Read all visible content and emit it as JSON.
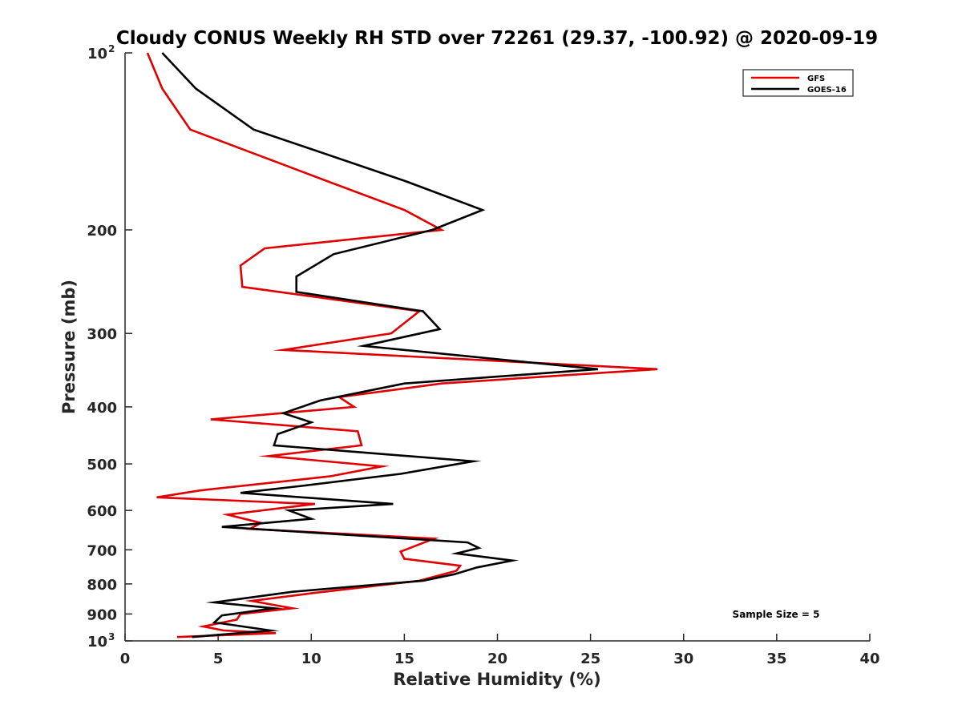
{
  "chart_data": {
    "type": "line",
    "title": "Cloudy CONUS Weekly RH STD over 72261 (29.37, -100.92) @ 2020-09-19",
    "xlabel": "Relative Humidity (%)",
    "ylabel": "Pressure (mb)",
    "xlim": [
      0,
      40
    ],
    "ylim": [
      100,
      1000
    ],
    "y_scale": "log",
    "y_reversed": true,
    "grid": false,
    "legend_position": "top-right",
    "x_ticks": [
      "0",
      "5",
      "10",
      "15",
      "20",
      "25",
      "30",
      "35",
      "40"
    ],
    "y_ticks": [
      {
        "value": 100,
        "base": "10",
        "exp": "2"
      },
      {
        "value": 200,
        "label": "200"
      },
      {
        "value": 300,
        "label": "300"
      },
      {
        "value": 400,
        "label": "400"
      },
      {
        "value": 500,
        "label": "500"
      },
      {
        "value": 600,
        "label": "600"
      },
      {
        "value": 700,
        "label": "700"
      },
      {
        "value": 800,
        "label": "800"
      },
      {
        "value": 900,
        "label": "900"
      },
      {
        "value": 1000,
        "base": "10",
        "exp": "3"
      }
    ],
    "annotation": "Sample Size = 5",
    "series": [
      {
        "name": "GFS",
        "color": "#e00000",
        "points": [
          [
            1.2,
            100
          ],
          [
            2.0,
            115
          ],
          [
            3.5,
            135
          ],
          [
            10.8,
            165
          ],
          [
            15.0,
            185
          ],
          [
            17.0,
            200
          ],
          [
            7.5,
            215
          ],
          [
            6.2,
            230
          ],
          [
            6.3,
            250
          ],
          [
            15.8,
            275
          ],
          [
            14.3,
            300
          ],
          [
            8.5,
            320
          ],
          [
            28.6,
            345
          ],
          [
            17.0,
            365
          ],
          [
            11.5,
            385
          ],
          [
            12.3,
            400
          ],
          [
            4.6,
            420
          ],
          [
            12.5,
            440
          ],
          [
            12.7,
            465
          ],
          [
            7.7,
            485
          ],
          [
            13.8,
            505
          ],
          [
            11.0,
            525
          ],
          [
            4.0,
            555
          ],
          [
            1.7,
            570
          ],
          [
            10.2,
            585
          ],
          [
            5.5,
            610
          ],
          [
            7.3,
            630
          ],
          [
            6.7,
            645
          ],
          [
            16.6,
            670
          ],
          [
            14.8,
            705
          ],
          [
            15.0,
            725
          ],
          [
            18.0,
            745
          ],
          [
            17.8,
            760
          ],
          [
            15.8,
            790
          ],
          [
            10.0,
            830
          ],
          [
            6.8,
            855
          ],
          [
            9.0,
            880
          ],
          [
            6.2,
            900
          ],
          [
            6.0,
            920
          ],
          [
            4.2,
            945
          ],
          [
            5.3,
            960
          ],
          [
            8.1,
            970
          ],
          [
            2.8,
            985
          ]
        ]
      },
      {
        "name": "GOES-16",
        "color": "#000000",
        "points": [
          [
            2.0,
            100
          ],
          [
            3.8,
            115
          ],
          [
            6.9,
            135
          ],
          [
            15.0,
            165
          ],
          [
            19.2,
            185
          ],
          [
            16.5,
            200
          ],
          [
            11.2,
            220
          ],
          [
            9.2,
            240
          ],
          [
            9.2,
            255
          ],
          [
            16.0,
            275
          ],
          [
            16.9,
            295
          ],
          [
            12.8,
            315
          ],
          [
            25.4,
            345
          ],
          [
            15.0,
            365
          ],
          [
            10.5,
            390
          ],
          [
            8.5,
            410
          ],
          [
            10.0,
            425
          ],
          [
            8.2,
            445
          ],
          [
            8.0,
            465
          ],
          [
            18.7,
            495
          ],
          [
            14.8,
            520
          ],
          [
            9.5,
            545
          ],
          [
            6.2,
            560
          ],
          [
            14.4,
            585
          ],
          [
            8.8,
            600
          ],
          [
            10.0,
            620
          ],
          [
            5.2,
            640
          ],
          [
            18.4,
            680
          ],
          [
            19.0,
            695
          ],
          [
            17.8,
            710
          ],
          [
            20.8,
            730
          ],
          [
            18.9,
            750
          ],
          [
            17.7,
            770
          ],
          [
            16.0,
            790
          ],
          [
            9.0,
            825
          ],
          [
            4.8,
            860
          ],
          [
            8.0,
            880
          ],
          [
            5.2,
            905
          ],
          [
            4.8,
            930
          ],
          [
            7.8,
            960
          ],
          [
            3.6,
            985
          ]
        ]
      }
    ]
  }
}
